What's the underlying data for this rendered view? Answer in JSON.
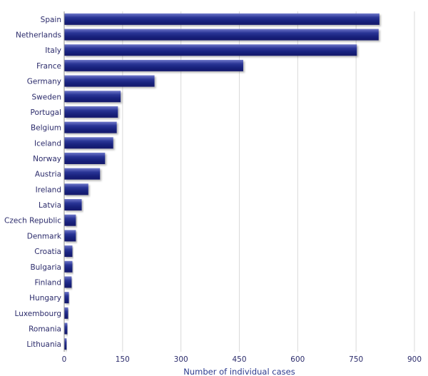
{
  "chart_data": {
    "type": "bar",
    "orientation": "horizontal",
    "categories": [
      "Spain",
      "Netherlands",
      "Italy",
      "France",
      "Germany",
      "Sweden",
      "Portugal",
      "Belgium",
      "Iceland",
      "Norway",
      "Austria",
      "Ireland",
      "Latvia",
      "Czech Republic",
      "Denmark",
      "Croatia",
      "Bulgaria",
      "Finland",
      "Hungary",
      "Luxembourg",
      "Romania",
      "Lithuania"
    ],
    "values": [
      810,
      808,
      752,
      460,
      232,
      145,
      138,
      135,
      126,
      105,
      92,
      62,
      45,
      30,
      30,
      21,
      21,
      19,
      12,
      10,
      8,
      6
    ],
    "title": "",
    "xlabel": "Number of individual cases",
    "ylabel": "",
    "xlim": [
      0,
      900
    ],
    "xticks": [
      "0",
      "150",
      "300",
      "450",
      "600",
      "750",
      "900"
    ],
    "grid": true,
    "bar_color": "#1f2a8a"
  }
}
